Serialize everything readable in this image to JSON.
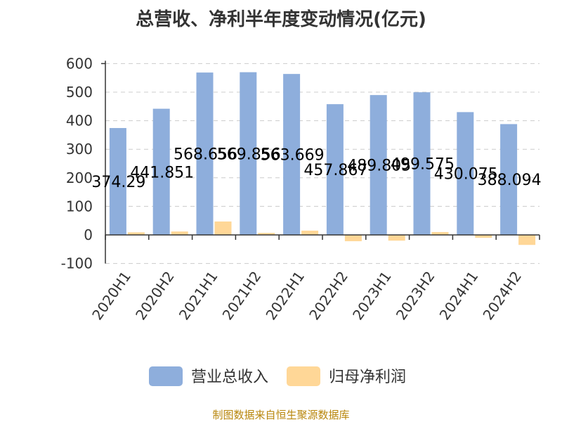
{
  "chart_data": {
    "type": "bar",
    "title": "总营收、净利半年度变动情况(亿元)",
    "categories": [
      "2020H1",
      "2020H2",
      "2021H1",
      "2021H2",
      "2022H1",
      "2022H2",
      "2023H1",
      "2023H2",
      "2024H1",
      "2024H2"
    ],
    "series": [
      {
        "name": "营业总收入",
        "color": "#8EAEDC",
        "values": [
          374.29,
          441.851,
          568.656,
          569.856,
          563.669,
          457.867,
          489.805,
          499.575,
          430.075,
          388.094
        ],
        "labels": [
          "374.29",
          "441.851",
          "568.656",
          "569.856",
          "563.669",
          "457.867",
          "489.805",
          "499.575",
          "430.075",
          "388.094"
        ]
      },
      {
        "name": "归母净利润",
        "color": "#FFD797",
        "values": [
          9,
          12,
          47,
          7,
          15,
          -22,
          -20,
          10,
          -10,
          -35
        ]
      }
    ],
    "y_ticks": [
      "600",
      "500",
      "400",
      "300",
      "200",
      "100",
      "0",
      "-100"
    ],
    "ylim": [
      -100,
      600
    ],
    "grid": true,
    "legend_position": "bottom",
    "source": "制图数据来自恒生聚源数据库"
  }
}
